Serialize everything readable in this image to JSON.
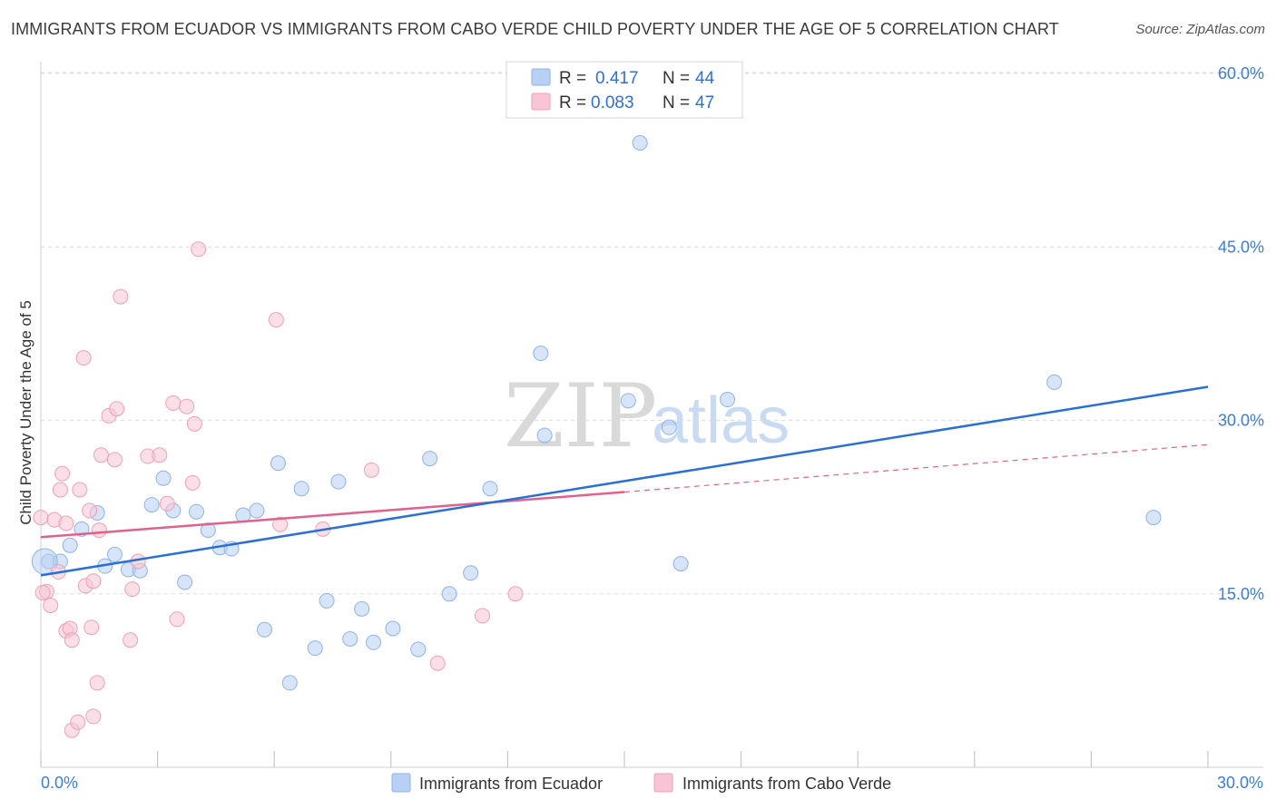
{
  "header": {
    "title": "IMMIGRANTS FROM ECUADOR VS IMMIGRANTS FROM CABO VERDE CHILD POVERTY UNDER THE AGE OF 5 CORRELATION CHART",
    "source": "Source: ZipAtlas.com"
  },
  "watermark": {
    "zip": "ZIP",
    "atlas": "atlas"
  },
  "legend": {
    "rows": [
      {
        "r_label": "R =",
        "r_value": "0.417",
        "n_label": "N =",
        "n_value": "44"
      },
      {
        "r_label": "R =",
        "r_value": "0.083",
        "n_label": "N =",
        "n_value": "47"
      }
    ]
  },
  "colors": {
    "ecuador_fill": "#b8d0f3",
    "ecuador_stroke": "#8db3e8",
    "ecuador_line": "#2a6fd4",
    "caboverde_fill": "#f8c5d4",
    "caboverde_stroke": "#eea0b8",
    "caboverde_line": "#e0608e",
    "grid": "#dcdcdc",
    "axis_label": "#3d7dd8"
  },
  "chart_data": {
    "type": "scatter",
    "title": "IMMIGRANTS FROM ECUADOR VS IMMIGRANTS FROM CABO VERDE CHILD POVERTY UNDER THE AGE OF 5 CORRELATION CHART",
    "xlabel": "",
    "ylabel": "Child Poverty Under the Age of 5",
    "xlim": [
      0,
      30
    ],
    "ylim": [
      0,
      60
    ],
    "x_tick_labels": [
      "0.0%",
      "30.0%"
    ],
    "y_ticks": [
      15,
      30,
      45,
      60
    ],
    "y_tick_labels": [
      "15.0%",
      "30.0%",
      "45.0%",
      "60.0%"
    ],
    "grid": "horizontal dashed",
    "legend_position": "top-center",
    "series": [
      {
        "name": "Immigrants from Ecuador",
        "R": 0.417,
        "N": 44,
        "trend": {
          "x": [
            0,
            30
          ],
          "y": [
            16.6,
            32.9
          ]
        },
        "points": [
          [
            0.2,
            17.8
          ],
          [
            0.5,
            17.8
          ],
          [
            0.75,
            19.2
          ],
          [
            1.05,
            20.6
          ],
          [
            1.45,
            22.0
          ],
          [
            1.65,
            17.4
          ],
          [
            1.9,
            18.4
          ],
          [
            2.25,
            17.1
          ],
          [
            2.55,
            17.0
          ],
          [
            2.85,
            22.7
          ],
          [
            3.15,
            25.0
          ],
          [
            3.4,
            22.2
          ],
          [
            3.7,
            16.0
          ],
          [
            4.0,
            22.1
          ],
          [
            4.3,
            20.5
          ],
          [
            4.6,
            19.0
          ],
          [
            4.9,
            18.9
          ],
          [
            5.2,
            21.8
          ],
          [
            5.55,
            22.2
          ],
          [
            5.75,
            11.9
          ],
          [
            6.1,
            26.3
          ],
          [
            6.4,
            7.3
          ],
          [
            6.7,
            24.1
          ],
          [
            7.05,
            10.3
          ],
          [
            7.35,
            14.4
          ],
          [
            7.65,
            24.7
          ],
          [
            7.95,
            11.1
          ],
          [
            8.25,
            13.7
          ],
          [
            8.55,
            10.8
          ],
          [
            9.05,
            12.0
          ],
          [
            9.7,
            10.2
          ],
          [
            10.0,
            26.7
          ],
          [
            10.5,
            15.0
          ],
          [
            11.05,
            16.8
          ],
          [
            11.55,
            24.1
          ],
          [
            12.85,
            35.8
          ],
          [
            12.95,
            28.7
          ],
          [
            15.1,
            31.7
          ],
          [
            15.4,
            54.0
          ],
          [
            16.15,
            29.4
          ],
          [
            16.45,
            17.6
          ],
          [
            17.65,
            31.8
          ],
          [
            26.05,
            33.3
          ],
          [
            28.6,
            21.6
          ]
        ]
      },
      {
        "name": "Immigrants from Cabo Verde",
        "R": 0.083,
        "N": 47,
        "trend": {
          "x": [
            0,
            15
          ],
          "y": [
            19.9,
            23.8
          ]
        },
        "trend_extension": {
          "x": [
            15,
            30
          ],
          "y": [
            23.8,
            27.9
          ]
        },
        "points": [
          [
            0.0,
            21.6
          ],
          [
            0.15,
            15.2
          ],
          [
            0.25,
            14.0
          ],
          [
            0.35,
            21.4
          ],
          [
            0.45,
            16.9
          ],
          [
            0.55,
            25.4
          ],
          [
            0.65,
            21.1
          ],
          [
            0.5,
            24.0
          ],
          [
            0.65,
            11.8
          ],
          [
            0.75,
            12.0
          ],
          [
            0.8,
            3.2
          ],
          [
            0.8,
            11.0
          ],
          [
            0.95,
            3.9
          ],
          [
            1.1,
            35.4
          ],
          [
            1.0,
            24.0
          ],
          [
            1.15,
            15.7
          ],
          [
            1.25,
            22.2
          ],
          [
            1.3,
            12.1
          ],
          [
            1.35,
            16.1
          ],
          [
            1.35,
            4.4
          ],
          [
            1.45,
            7.3
          ],
          [
            1.5,
            20.5
          ],
          [
            1.55,
            27.0
          ],
          [
            1.75,
            30.4
          ],
          [
            1.9,
            26.6
          ],
          [
            1.95,
            31.0
          ],
          [
            2.05,
            40.7
          ],
          [
            2.3,
            11.0
          ],
          [
            2.35,
            15.4
          ],
          [
            2.5,
            17.8
          ],
          [
            2.75,
            26.9
          ],
          [
            3.05,
            27.0
          ],
          [
            3.25,
            22.8
          ],
          [
            3.4,
            31.5
          ],
          [
            3.5,
            12.8
          ],
          [
            3.75,
            31.2
          ],
          [
            3.9,
            24.6
          ],
          [
            3.95,
            29.7
          ],
          [
            4.05,
            44.8
          ],
          [
            6.05,
            38.7
          ],
          [
            6.15,
            21.0
          ],
          [
            7.25,
            20.6
          ],
          [
            8.5,
            25.7
          ],
          [
            10.2,
            9.0
          ],
          [
            11.35,
            13.1
          ],
          [
            12.2,
            15.0
          ],
          [
            0.05,
            15.1
          ]
        ]
      }
    ]
  },
  "bottom_legend": {
    "items": [
      {
        "label": "Immigrants from Ecuador"
      },
      {
        "label": "Immigrants from Cabo Verde"
      }
    ]
  }
}
